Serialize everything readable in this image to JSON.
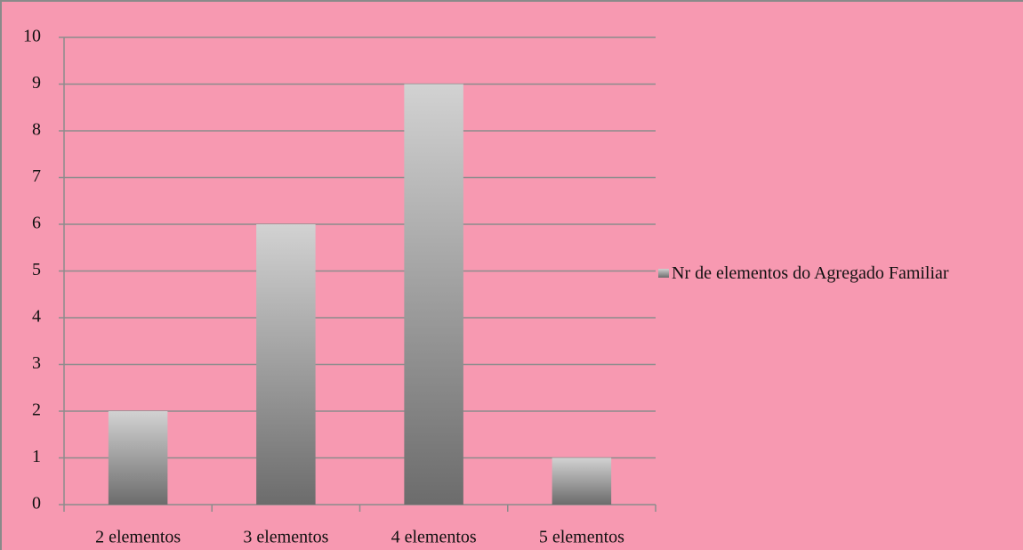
{
  "chart_data": {
    "type": "bar",
    "categories": [
      "2 elementos",
      "3 elementos",
      "4 elementos",
      "5 elementos"
    ],
    "series": [
      {
        "name": "Nr de elementos do Agregado Familiar",
        "values": [
          2,
          6,
          9,
          1
        ]
      }
    ],
    "ylim": [
      0,
      10
    ],
    "yticks": [
      0,
      1,
      2,
      3,
      4,
      5,
      6,
      7,
      8,
      9,
      10
    ],
    "grid": true,
    "legend": "right"
  }
}
